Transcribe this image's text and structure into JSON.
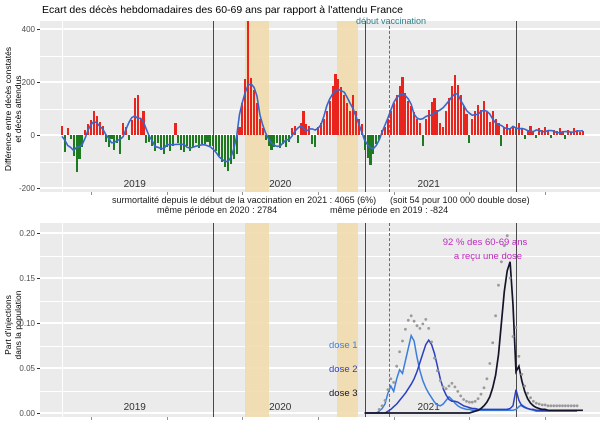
{
  "title": "Ecart des décès hebdomadaires des 60-69 ans par rapport à l'attendu France",
  "colors": {
    "panel_bg": "#ebebeb",
    "excess_positive": "#e9241c",
    "excess_negative": "#1e7a1e",
    "smooth_line": "#3a66cc",
    "shaded_band": "#f2dcae",
    "year_line": "#4a4a4a",
    "vaccination_line": "#31808a",
    "dose1": "#3c7edc",
    "dose2": "#2b3fc0",
    "dose3": "#14142a",
    "dots": "#9a9a9a",
    "coverage_text": "#be29be"
  },
  "annotations": {
    "line1_left": "surmortalité depuis le début de la vaccination en 2021 : 4065  (6%)",
    "line1_right": "(soit 54 pour 100 000 double dose)",
    "line2_left": "même période en 2020 : 2784",
    "line2_right": "même période en 2019 : -824",
    "coverage_line1": "92 % des 60-69 ans",
    "coverage_line2": "a reçu une dose",
    "vaccination_label": "début vaccination"
  },
  "top_panel": {
    "y_label_line1": "Différence entre décès constatés",
    "y_label_line2": "et décès attendus",
    "y_ticks": [
      {
        "label": "400",
        "v": 400
      },
      {
        "label": "200",
        "v": 200
      },
      {
        "label": "0",
        "v": 0
      },
      {
        "label": "-200",
        "v": -200
      }
    ]
  },
  "bottom_panel": {
    "y_label_line1": "Part d'injections",
    "y_label_line2": "dans la population",
    "y_ticks": [
      {
        "label": "0.20",
        "v": 0.2
      },
      {
        "label": "0.15",
        "v": 0.15
      },
      {
        "label": "0.10",
        "v": 0.1
      },
      {
        "label": "0.05",
        "v": 0.05
      },
      {
        "label": "0.00",
        "v": 0.0
      }
    ]
  },
  "year_labels": [
    {
      "label": "2019",
      "week": 25
    },
    {
      "label": "2020",
      "week": 75
    },
    {
      "label": "2021",
      "week": 126
    }
  ],
  "chart_data": [
    {
      "type": "bar",
      "title": "Ecart des décès hebdomadaires des 60-69 ans par rapport à l'attendu France",
      "x_unit": "week",
      "x_start": "2019-W01",
      "ylabel": "Différence entre décès constatés et décès attendus",
      "ylim": [
        -215,
        430
      ],
      "y_tick_values": [
        400,
        200,
        0,
        -200
      ],
      "grid": true,
      "smooth_line": "moving-average blue trend line over weekly bars",
      "events": {
        "year_boundaries_weeks": [
          52,
          104,
          156
        ],
        "vaccination_start_week": 112.4,
        "shaded_bands_weeks": [
          [
            63,
            71.2
          ],
          [
            94.5,
            101.7
          ]
        ]
      },
      "values": [
        35,
        -65,
        25,
        -15,
        -80,
        -140,
        -90,
        -45,
        20,
        40,
        55,
        90,
        70,
        50,
        35,
        -25,
        -45,
        -15,
        -55,
        -30,
        -70,
        45,
        30,
        -20,
        55,
        140,
        150,
        60,
        90,
        -30,
        -25,
        -40,
        -60,
        -30,
        -55,
        -70,
        -45,
        -60,
        -40,
        45,
        -30,
        -55,
        -65,
        -40,
        -60,
        -45,
        -30,
        -50,
        -35,
        -35,
        -25,
        -40,
        -40,
        -60,
        -80,
        -100,
        -120,
        -135,
        -110,
        -90,
        -70,
        30,
        120,
        210,
        455,
        215,
        170,
        120,
        60,
        25,
        -20,
        -40,
        -55,
        -45,
        -30,
        -50,
        -35,
        -45,
        -25,
        25,
        35,
        -30,
        45,
        90,
        40,
        35,
        -35,
        -45,
        30,
        45,
        60,
        90,
        130,
        185,
        230,
        210,
        180,
        150,
        120,
        90,
        150,
        90,
        60,
        40,
        -55,
        -85,
        -115,
        -70,
        -35,
        -20,
        20,
        30,
        60,
        90,
        120,
        150,
        185,
        220,
        160,
        130,
        110,
        85,
        60,
        45,
        -40,
        60,
        95,
        125,
        140,
        95,
        45,
        30,
        90,
        140,
        185,
        225,
        190,
        150,
        110,
        80,
        -30,
        60,
        90,
        115,
        95,
        130,
        85,
        50,
        90,
        60,
        45,
        -40,
        30,
        40,
        25,
        35,
        30,
        45,
        25,
        -15,
        20,
        35,
        15,
        -10,
        25,
        20,
        30,
        15,
        -10,
        20,
        15,
        25,
        10,
        -15,
        20,
        10,
        25,
        15,
        10,
        15
      ]
    },
    {
      "type": "line",
      "ylabel": "Part d'injections dans la population",
      "ylim": [
        0,
        0.21
      ],
      "y_tick_values": [
        0.0,
        0.05,
        0.1,
        0.15,
        0.2
      ],
      "grid": true,
      "series": [
        {
          "name": "dose 1",
          "color": "#3c7edc",
          "style": "line",
          "start_week": 104,
          "values": [
            0,
            0,
            0,
            0,
            0,
            0.002,
            0.005,
            0.01,
            0.022,
            0.03,
            0.024,
            0.038,
            0.048,
            0.044,
            0.058,
            0.072,
            0.086,
            0.08,
            0.062,
            0.047,
            0.036,
            0.028,
            0.022,
            0.017,
            0.012,
            0.009,
            0.008,
            0.01,
            0.014,
            0.018,
            0.015,
            0.011,
            0.008,
            0.006,
            0.005,
            0.004,
            0.004,
            0.003,
            0.003,
            0.003,
            0.003,
            0.003,
            0.003,
            0.003,
            0.003,
            0.003,
            0.003,
            0.003,
            0.003,
            0.003,
            0.003,
            0.003,
            0.004,
            0.007,
            0.009,
            0.007,
            0.005,
            0.004,
            0.003,
            0.002,
            0.002,
            0.002,
            0.002,
            0.002,
            0.002,
            0.002,
            0.002,
            0.002,
            0.002,
            0.002,
            0.002,
            0.002,
            0.002,
            0.002
          ]
        },
        {
          "name": "dose 2",
          "color": "#2b3fc0",
          "style": "line",
          "start_week": 104,
          "values": [
            0,
            0,
            0,
            0,
            0,
            0,
            0,
            0,
            0.002,
            0.004,
            0.007,
            0.01,
            0.014,
            0.018,
            0.022,
            0.027,
            0.032,
            0.038,
            0.046,
            0.056,
            0.066,
            0.076,
            0.081,
            0.076,
            0.066,
            0.052,
            0.038,
            0.027,
            0.02,
            0.015,
            0.013,
            0.013,
            0.012,
            0.01,
            0.008,
            0.007,
            0.006,
            0.005,
            0.005,
            0.004,
            0.004,
            0.004,
            0.004,
            0.004,
            0.004,
            0.004,
            0.004,
            0.004,
            0.004,
            0.004,
            0.005,
            0.008,
            0.026,
            0.014,
            0.008,
            0.006,
            0.005,
            0.004,
            0.004,
            0.003,
            0.003,
            0.003,
            0.003,
            0.003,
            0.003,
            0.003,
            0.003,
            0.003,
            0.003,
            0.003,
            0.003,
            0.003,
            0.003,
            0.003
          ]
        },
        {
          "name": "dose 3",
          "color": "#14142a",
          "style": "line",
          "start_week": 104,
          "values": [
            0,
            0,
            0,
            0,
            0,
            0,
            0,
            0,
            0,
            0,
            0,
            0,
            0,
            0,
            0,
            0,
            0,
            0,
            0,
            0,
            0,
            0,
            0,
            0,
            0,
            0,
            0,
            0,
            0,
            0,
            0,
            0,
            0,
            0,
            0,
            0,
            0,
            0.001,
            0.002,
            0.003,
            0.005,
            0.008,
            0.012,
            0.018,
            0.028,
            0.042,
            0.065,
            0.1,
            0.135,
            0.158,
            0.168,
            0.12,
            0.046,
            0.052,
            0.036,
            0.024,
            0.016,
            0.011,
            0.008,
            0.006,
            0.005,
            0.004,
            0.004,
            0.003,
            0.003,
            0.003,
            0.003,
            0.003,
            0.003,
            0.003,
            0.003,
            0.003,
            0.003,
            0.003,
            0.003,
            0.003
          ]
        },
        {
          "name": "toutes doses (points)",
          "color": "#9a9a9a",
          "style": "points",
          "start_week": 109,
          "values": [
            0.004,
            0.008,
            0.014,
            0.026,
            0.038,
            0.034,
            0.052,
            0.068,
            0.08,
            0.093,
            0.103,
            0.108,
            0.102,
            0.097,
            0.094,
            0.099,
            0.104,
            0.094,
            0.079,
            0.061,
            0.047,
            0.036,
            0.029,
            0.027,
            0.03,
            0.033,
            0.029,
            0.024,
            0.019,
            0.015,
            0.013,
            0.012,
            0.012,
            0.013,
            0.016,
            0.021,
            0.028,
            0.038,
            0.055,
            0.078,
            0.108,
            0.142,
            0.168,
            0.186,
            0.197,
            0.15,
            0.085,
            0.095,
            0.063,
            0.043,
            0.03,
            0.022,
            0.017,
            0.013,
            0.011,
            0.01,
            0.009,
            0.009,
            0.008,
            0.008,
            0.008,
            0.008,
            0.008,
            0.008,
            0.008,
            0.008,
            0.008,
            0.008,
            0.008
          ]
        }
      ],
      "annotation": "92 % des 60-69 ans a reçu une dose"
    }
  ]
}
